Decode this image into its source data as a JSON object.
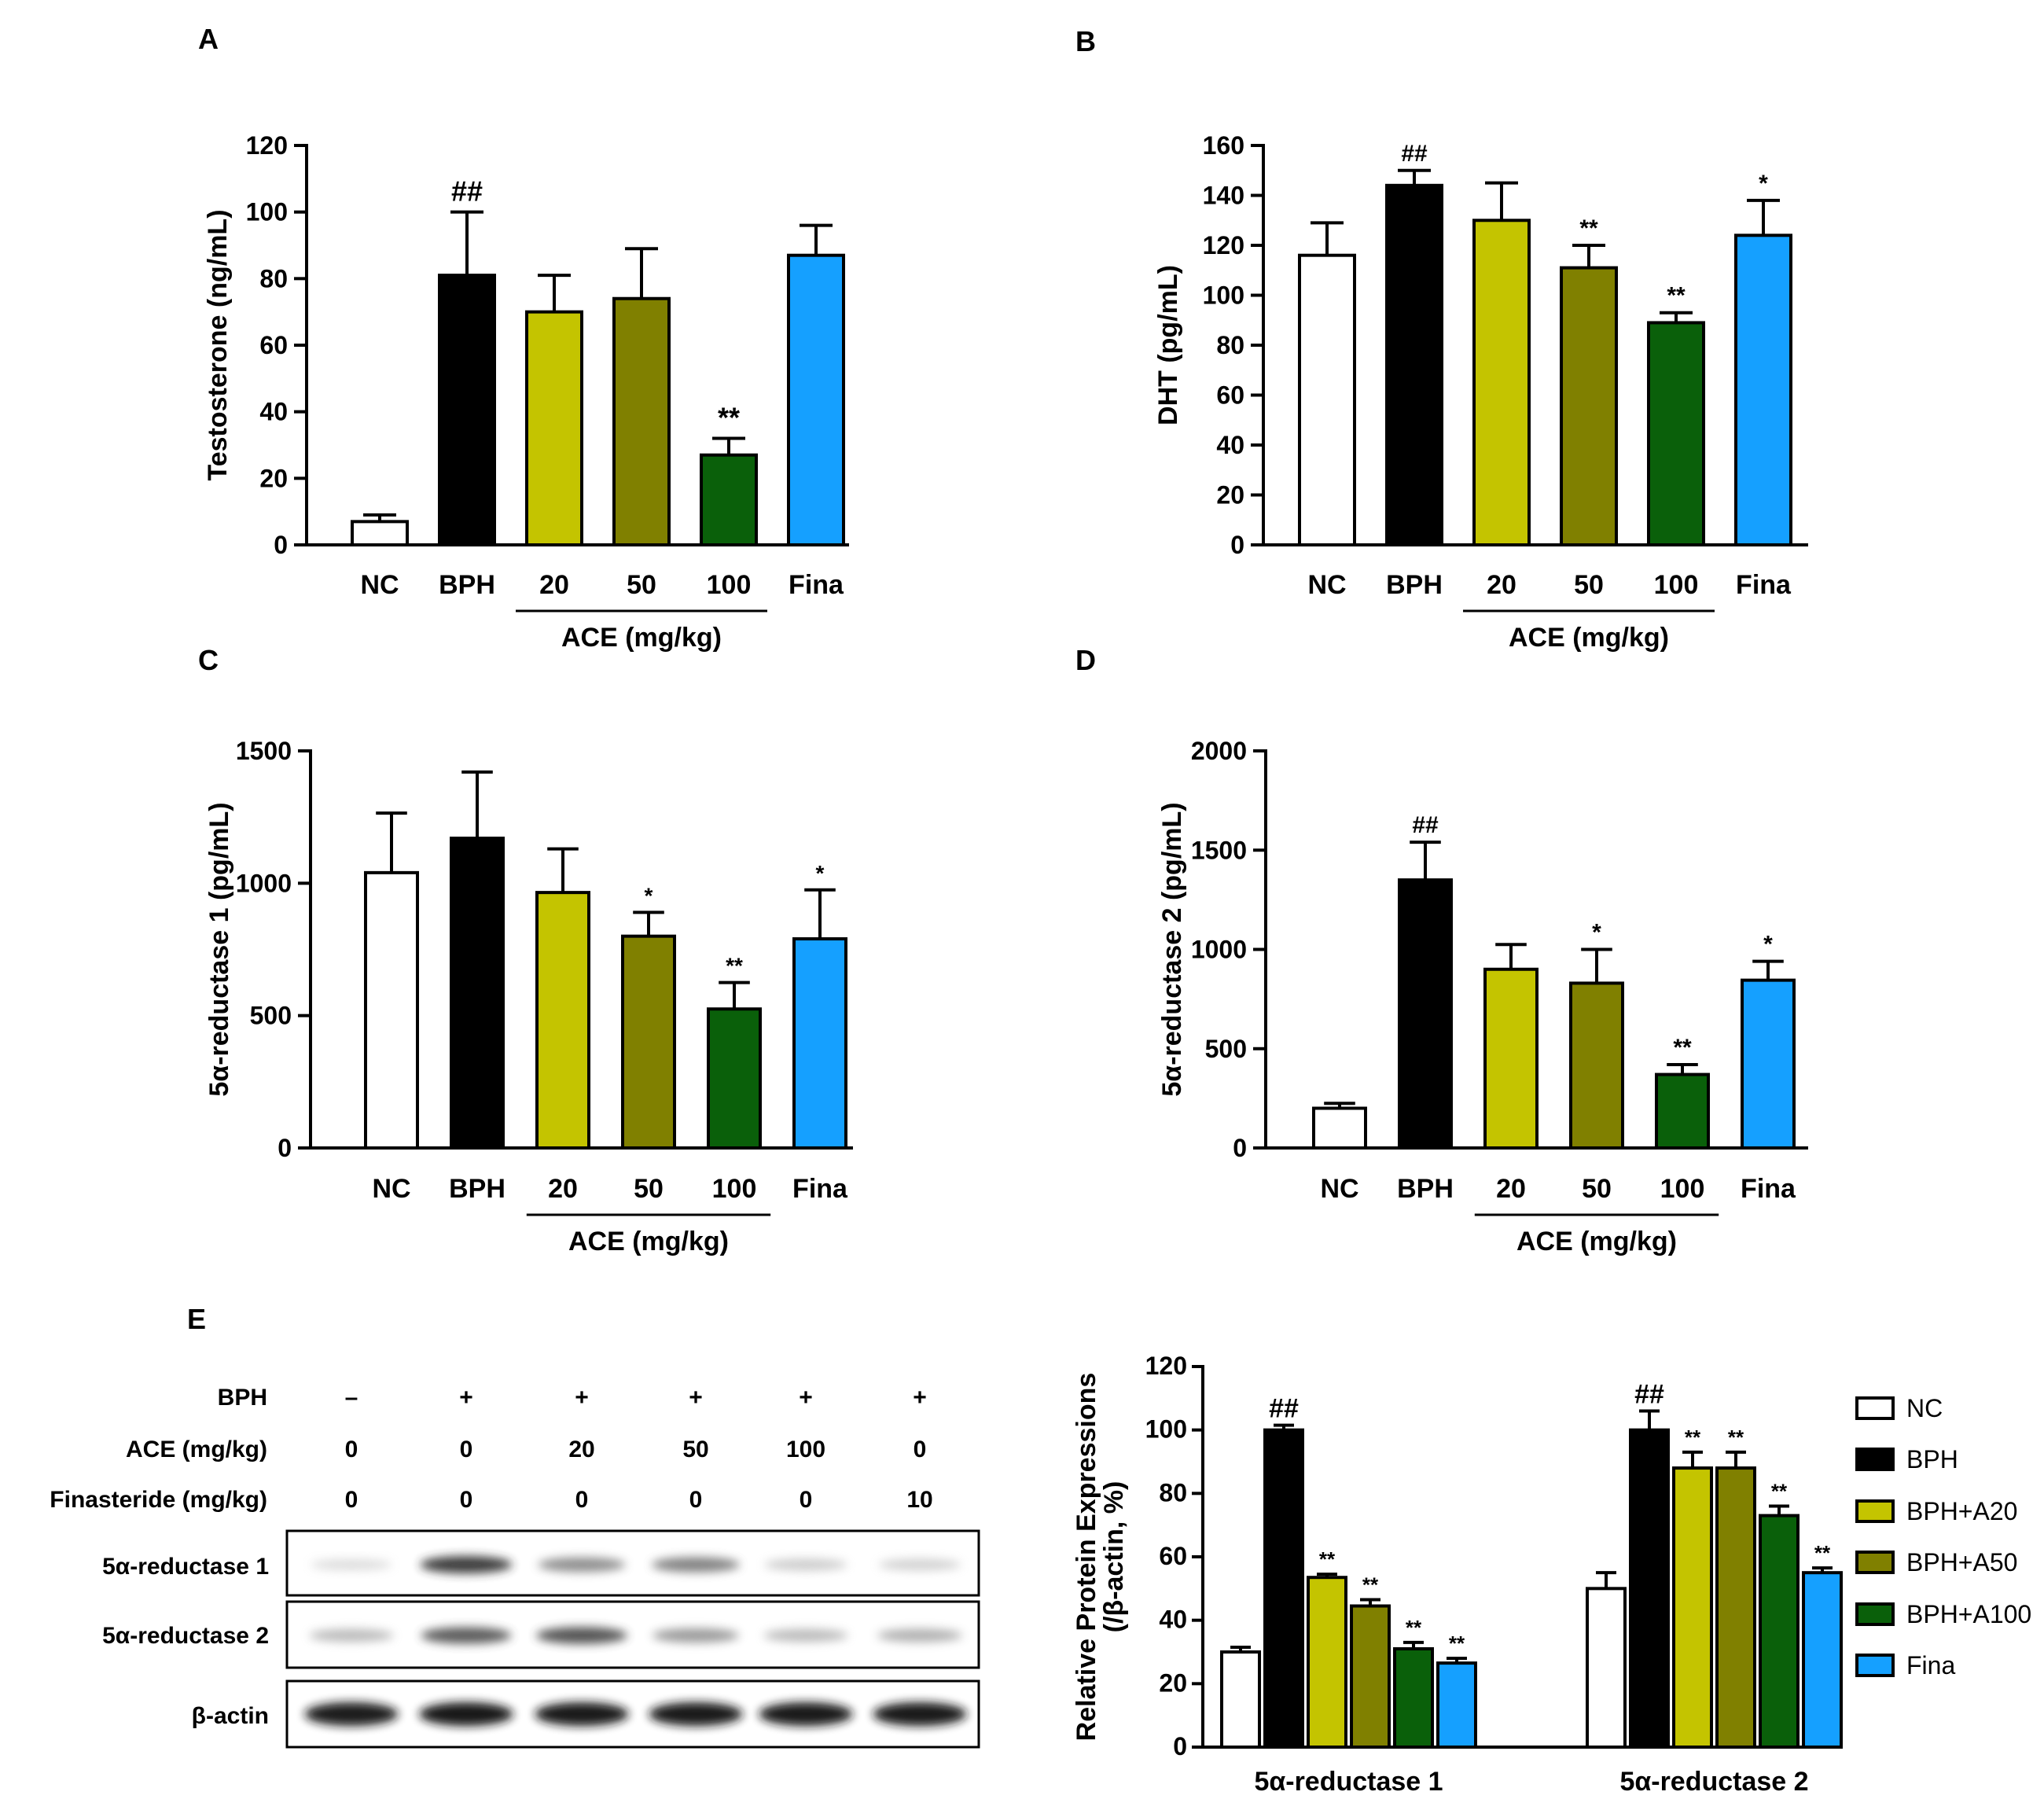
{
  "colors": {
    "NC": "#ffffff",
    "BPH": "#000000",
    "A20": "#c4c400",
    "A50": "#808000",
    "A100": "#0a600a",
    "Fina": "#15a0ff"
  },
  "chart_data": [
    {
      "id": "A",
      "type": "bar",
      "panel_label": "A",
      "ylabel": "Testosterone (ng/mL)",
      "ylim": [
        0,
        120
      ],
      "yticks": [
        0,
        20,
        40,
        60,
        80,
        100,
        120
      ],
      "categories": [
        "NC",
        "BPH",
        "20",
        "50",
        "100",
        "Fina"
      ],
      "color_keys": [
        "NC",
        "BPH",
        "A20",
        "A50",
        "A100",
        "Fina"
      ],
      "values": [
        7,
        81,
        70,
        74,
        27,
        87
      ],
      "errors": [
        2,
        19,
        11,
        15,
        5,
        9
      ],
      "annotations": [
        "",
        "##",
        "",
        "",
        "**",
        ""
      ],
      "group_label": "ACE (mg/kg)"
    },
    {
      "id": "B",
      "type": "bar",
      "panel_label": "B",
      "ylabel": "DHT (pg/mL)",
      "ylim": [
        0,
        160
      ],
      "yticks": [
        0,
        20,
        40,
        60,
        80,
        100,
        120,
        140,
        160
      ],
      "categories": [
        "NC",
        "BPH",
        "20",
        "50",
        "100",
        "Fina"
      ],
      "color_keys": [
        "NC",
        "BPH",
        "A20",
        "A50",
        "A100",
        "Fina"
      ],
      "values": [
        116,
        144,
        130,
        111,
        89,
        124
      ],
      "errors": [
        13,
        6,
        15,
        9,
        4,
        14
      ],
      "annotations": [
        "",
        "##",
        "",
        "**",
        "**",
        "*"
      ],
      "group_label": "ACE (mg/kg)"
    },
    {
      "id": "C",
      "type": "bar",
      "panel_label": "C",
      "ylabel": "5α-reductase 1 (pg/mL)",
      "ylim": [
        0,
        1500
      ],
      "yticks": [
        0,
        500,
        1000,
        1500
      ],
      "categories": [
        "NC",
        "BPH",
        "20",
        "50",
        "100",
        "Fina"
      ],
      "color_keys": [
        "NC",
        "BPH",
        "A20",
        "A50",
        "A100",
        "Fina"
      ],
      "values": [
        1040,
        1170,
        965,
        800,
        525,
        790
      ],
      "errors": [
        225,
        250,
        165,
        90,
        100,
        185
      ],
      "annotations": [
        "",
        "",
        "",
        "*",
        "**",
        "*"
      ],
      "group_label": "ACE (mg/kg)"
    },
    {
      "id": "D",
      "type": "bar",
      "panel_label": "D",
      "ylabel": "5α-reductase 2 (pg/mL)",
      "ylim": [
        0,
        2000
      ],
      "yticks": [
        0,
        500,
        1000,
        1500,
        2000
      ],
      "categories": [
        "NC",
        "BPH",
        "20",
        "50",
        "100",
        "Fina"
      ],
      "color_keys": [
        "NC",
        "BPH",
        "A20",
        "A50",
        "A100",
        "Fina"
      ],
      "values": [
        200,
        1350,
        900,
        830,
        370,
        845
      ],
      "errors": [
        25,
        190,
        125,
        170,
        50,
        95
      ],
      "annotations": [
        "",
        "##",
        "",
        "*",
        "**",
        "*"
      ],
      "group_label": "ACE (mg/kg)"
    },
    {
      "id": "E",
      "type": "bar",
      "ylabel_line1": "Relative Protein Expressions",
      "ylabel_line2": "(/β-actin, %)",
      "ylim": [
        0,
        120
      ],
      "yticks": [
        0,
        20,
        40,
        60,
        80,
        100,
        120
      ],
      "categories": [
        "5α-reductase 1",
        "5α-reductase 2"
      ],
      "series": [
        {
          "name": "NC",
          "color_key": "NC",
          "values": [
            30,
            50
          ],
          "errors": [
            1.5,
            5
          ],
          "annotations": [
            "",
            ""
          ]
        },
        {
          "name": "BPH",
          "color_key": "BPH",
          "values": [
            100,
            100
          ],
          "errors": [
            1.5,
            6
          ],
          "annotations": [
            "##",
            "##"
          ]
        },
        {
          "name": "BPH+A20",
          "color_key": "A20",
          "values": [
            53.5,
            88
          ],
          "errors": [
            1,
            5
          ],
          "annotations": [
            "**",
            "**"
          ]
        },
        {
          "name": "BPH+A50",
          "color_key": "A50",
          "values": [
            44.5,
            88
          ],
          "errors": [
            2,
            5
          ],
          "annotations": [
            "**",
            "**"
          ]
        },
        {
          "name": "BPH+A100",
          "color_key": "A100",
          "values": [
            31,
            73
          ],
          "errors": [
            2,
            3
          ],
          "annotations": [
            "**",
            "**"
          ]
        },
        {
          "name": "Fina",
          "color_key": "Fina",
          "values": [
            26.5,
            55
          ],
          "errors": [
            1.5,
            1.5
          ],
          "annotations": [
            "**",
            "**"
          ]
        }
      ],
      "legend_position": "right"
    }
  ],
  "western_blot": {
    "panel_label": "E",
    "conditions": [
      {
        "label": "BPH",
        "values": [
          "–",
          "+",
          "+",
          "+",
          "+",
          "+"
        ]
      },
      {
        "label": "ACE (mg/kg)",
        "values": [
          "0",
          "0",
          "20",
          "50",
          "100",
          "0"
        ]
      },
      {
        "label": "Finasteride (mg/kg)",
        "values": [
          "0",
          "0",
          "0",
          "0",
          "0",
          "10"
        ]
      }
    ],
    "blots": [
      {
        "label": "5α-reductase 1",
        "intensities": [
          0.15,
          0.85,
          0.55,
          0.6,
          0.25,
          0.22
        ]
      },
      {
        "label": "5α-reductase 2",
        "intensities": [
          0.35,
          0.75,
          0.78,
          0.5,
          0.35,
          0.4
        ]
      },
      {
        "label": "β-actin",
        "intensities": [
          0.95,
          0.98,
          0.97,
          0.96,
          0.96,
          0.96
        ]
      }
    ]
  }
}
